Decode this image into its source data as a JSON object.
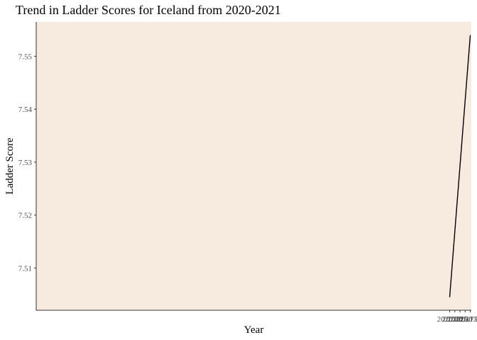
{
  "chart_data": {
    "type": "line",
    "title": "Trend in Ladder Scores for Iceland from 2020-2021",
    "xlabel": "Year",
    "ylabel": "Ladder Score",
    "x": [
      2020,
      2021
    ],
    "series": [
      {
        "values": [
          7.5045,
          7.554
        ]
      }
    ],
    "xlim": [
      1999.95,
      2021.05
    ],
    "ylim": [
      7.50203,
      7.55648
    ],
    "xticks": [
      2020.0,
      2020.25,
      2020.5,
      2020.75,
      2021.0
    ],
    "xtick_labels": [
      "2020.00",
      "2020.25",
      "2020.50",
      "2020.75",
      "2021.00"
    ],
    "yticks": [
      7.51,
      7.52,
      7.53,
      7.54,
      7.55
    ],
    "ytick_labels": [
      "7.51",
      "7.52",
      "7.53",
      "7.54",
      "7.55"
    ],
    "grid": false,
    "legend": "none",
    "colors": {
      "panel_background": "#f7ebe0",
      "line": "#000000"
    }
  }
}
